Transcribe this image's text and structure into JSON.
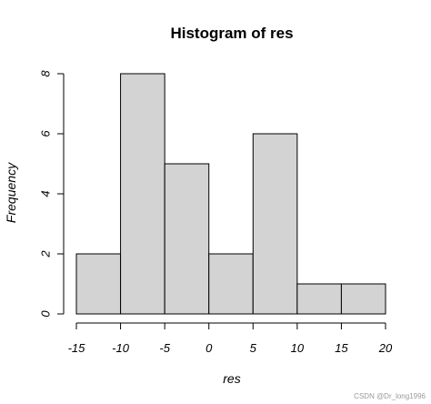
{
  "chart_data": {
    "type": "bar",
    "title": "Histogram of res",
    "xlabel": "res",
    "ylabel": "Frequency",
    "bins": [
      {
        "from": -15,
        "to": -10,
        "count": 2
      },
      {
        "from": -10,
        "to": -5,
        "count": 8
      },
      {
        "from": -5,
        "to": 0,
        "count": 5
      },
      {
        "from": 0,
        "to": 5,
        "count": 2
      },
      {
        "from": 5,
        "to": 10,
        "count": 6
      },
      {
        "from": 10,
        "to": 15,
        "count": 1
      },
      {
        "from": 15,
        "to": 20,
        "count": 1
      }
    ],
    "xticks": [
      -15,
      -10,
      -5,
      0,
      5,
      10,
      15,
      20
    ],
    "yticks": [
      0,
      2,
      4,
      6,
      8
    ],
    "xlim": [
      -15,
      20
    ],
    "ylim": [
      0,
      8
    ],
    "grid": false,
    "bar_fill": "#d3d3d3",
    "bar_stroke": "#000000"
  },
  "watermark": "CSDN @Dr_long1996"
}
